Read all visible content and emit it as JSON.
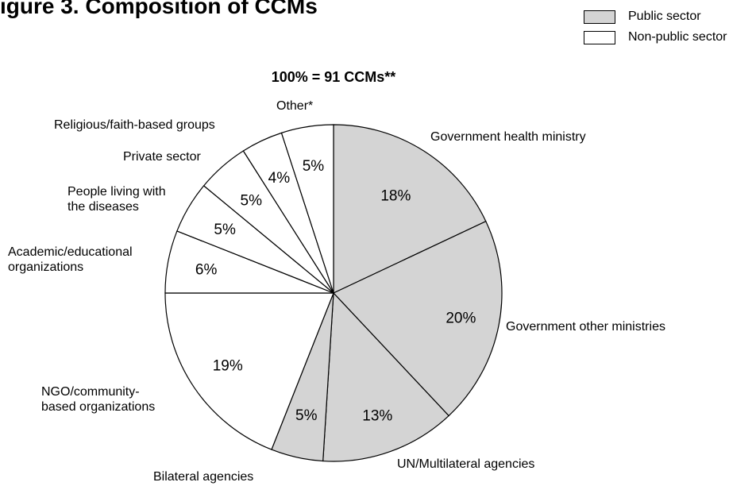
{
  "page_title": "igure 3. Composition of CCMs",
  "legend": {
    "items": [
      {
        "label": "Public sector",
        "color": "#d4d4d4"
      },
      {
        "label": "Non-public sector",
        "color": "#ffffff"
      }
    ]
  },
  "chart_data": {
    "type": "pie",
    "title": "100% = 91 CCMs**",
    "start": "12 o'clock",
    "direction": "clockwise",
    "slices": [
      {
        "category": "Government health ministry",
        "value": 18,
        "value_label": "18%",
        "sector": "public"
      },
      {
        "category": "Government other ministries",
        "value": 20,
        "value_label": "20%",
        "sector": "public"
      },
      {
        "category": "UN/Multilateral agencies",
        "value": 13,
        "value_label": "13%",
        "sector": "public"
      },
      {
        "category": "Bilateral agencies",
        "value": 5,
        "value_label": "5%",
        "sector": "public"
      },
      {
        "category": "NGO/community-based organizations",
        "value": 19,
        "value_label": "19%",
        "sector": "non-public"
      },
      {
        "category": "Academic/educational organizations",
        "value": 6,
        "value_label": "6%",
        "sector": "non-public"
      },
      {
        "category": "People living with the diseases",
        "value": 5,
        "value_label": "5%",
        "sector": "non-public"
      },
      {
        "category": "Private sector",
        "value": 5,
        "value_label": "5%",
        "sector": "non-public"
      },
      {
        "category": "Religious/faith-based groups",
        "value": 4,
        "value_label": "4%",
        "sector": "non-public"
      },
      {
        "category": "Other*",
        "value": 5,
        "value_label": "5%",
        "sector": "non-public"
      }
    ],
    "colors": {
      "public": "#d4d4d4",
      "non-public": "#ffffff",
      "stroke": "#000000"
    }
  }
}
